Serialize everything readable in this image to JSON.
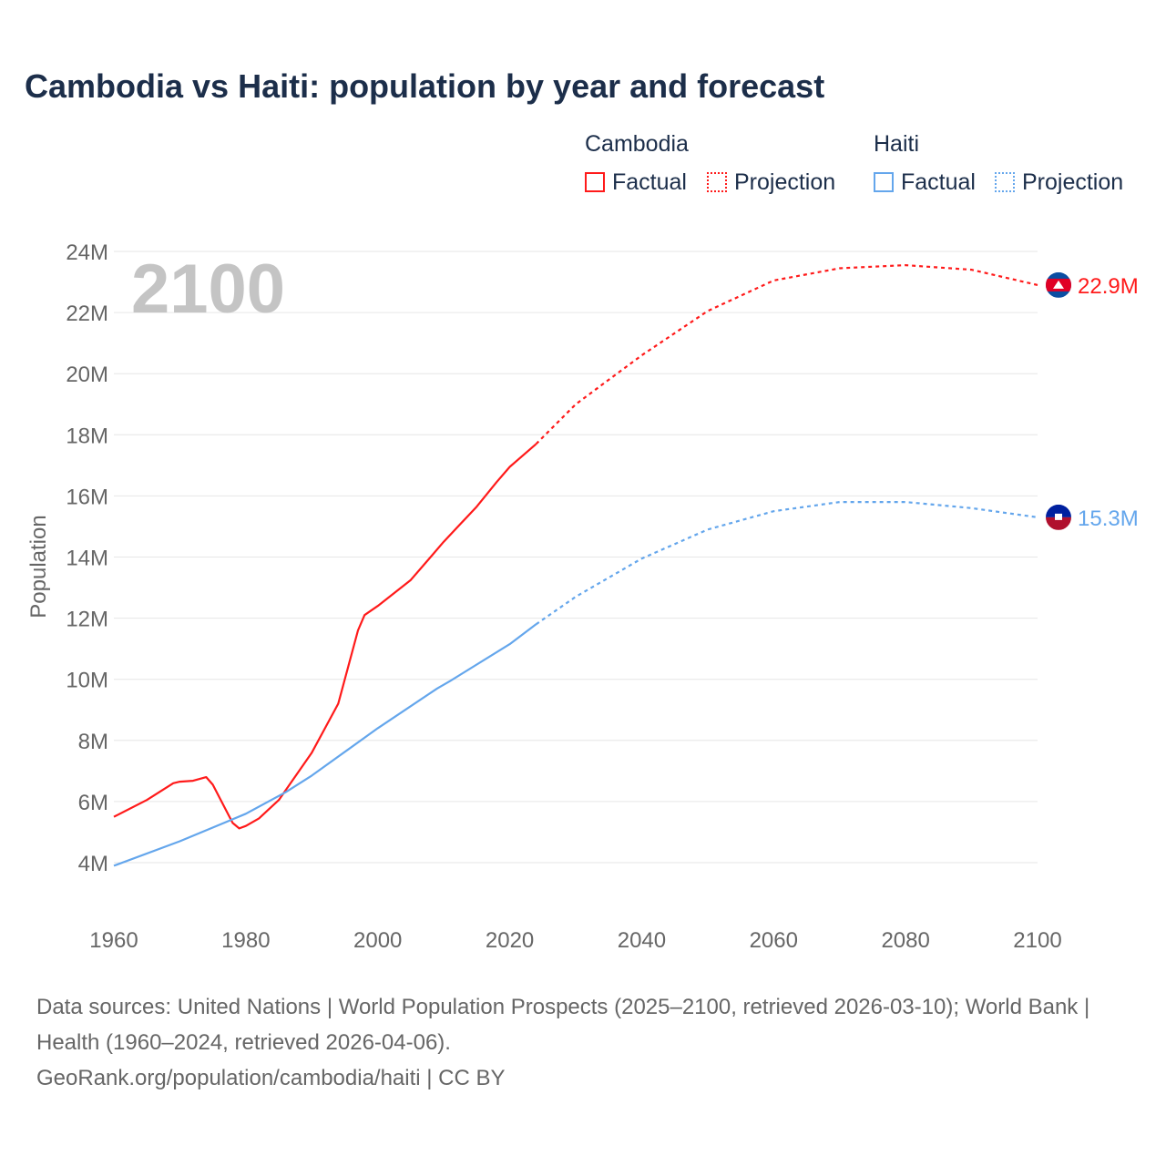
{
  "title": "Cambodia vs Haiti: population by year and forecast",
  "legend": {
    "groups": [
      {
        "name": "Cambodia",
        "color": "#ff1a1a",
        "factual": "Factual",
        "projection": "Projection"
      },
      {
        "name": "Haiti",
        "color": "#64a6ec",
        "factual": "Factual",
        "projection": "Projection"
      }
    ]
  },
  "year_watermark": "2100",
  "footer": {
    "sources": "Data sources: United Nations | World Population Prospects (2025–2100, retrieved 2026-03-10); World Bank | Health (1960–2024, retrieved 2026-04-06).",
    "credit": "GeoRank.org/population/cambodia/haiti | CC BY"
  },
  "chart_data": {
    "type": "line",
    "title": "Cambodia vs Haiti: population by year and forecast",
    "xlabel": "",
    "ylabel": "Population",
    "xlim": [
      1960,
      2100
    ],
    "ylim": [
      4,
      24
    ],
    "y_unit": "M",
    "xticks": [
      "1960",
      "1980",
      "2000",
      "2020",
      "2040",
      "2060",
      "2080",
      "2100"
    ],
    "yticks": [
      "4M",
      "6M",
      "8M",
      "10M",
      "12M",
      "14M",
      "16M",
      "18M",
      "20M",
      "22M",
      "24M"
    ],
    "grid": true,
    "legend_position": "top-right",
    "series": [
      {
        "name": "Cambodia",
        "color": "#ff1a1a",
        "end_label": "22.9M",
        "factual": {
          "x": [
            1960,
            1965,
            1969,
            1970,
            1972,
            1974,
            1975,
            1978,
            1979,
            1980,
            1982,
            1985,
            1990,
            1992,
            1994,
            1997,
            1998,
            2000,
            2005,
            2008,
            2010,
            2015,
            2018,
            2020,
            2024
          ],
          "y": [
            5.5,
            6.05,
            6.6,
            6.65,
            6.68,
            6.8,
            6.55,
            5.3,
            5.12,
            5.2,
            5.45,
            6.05,
            7.6,
            8.4,
            9.2,
            11.6,
            12.1,
            12.4,
            13.25,
            14.0,
            14.5,
            15.65,
            16.45,
            16.95,
            17.7
          ]
        },
        "projection": {
          "x": [
            2024,
            2030,
            2040,
            2050,
            2060,
            2070,
            2080,
            2090,
            2100
          ],
          "y": [
            17.7,
            19.0,
            20.6,
            22.05,
            23.05,
            23.45,
            23.55,
            23.4,
            22.9
          ]
        }
      },
      {
        "name": "Haiti",
        "color": "#64a6ec",
        "end_label": "15.3M",
        "factual": {
          "x": [
            1960,
            1970,
            1980,
            1986,
            1990,
            2000,
            2009,
            2011,
            2020,
            2024
          ],
          "y": [
            3.9,
            4.7,
            5.6,
            6.3,
            6.85,
            8.4,
            9.7,
            9.95,
            11.15,
            11.8
          ]
        },
        "projection": {
          "x": [
            2024,
            2030,
            2040,
            2050,
            2060,
            2070,
            2080,
            2090,
            2100
          ],
          "y": [
            11.8,
            12.7,
            13.95,
            14.9,
            15.5,
            15.8,
            15.8,
            15.6,
            15.3
          ]
        }
      }
    ]
  }
}
